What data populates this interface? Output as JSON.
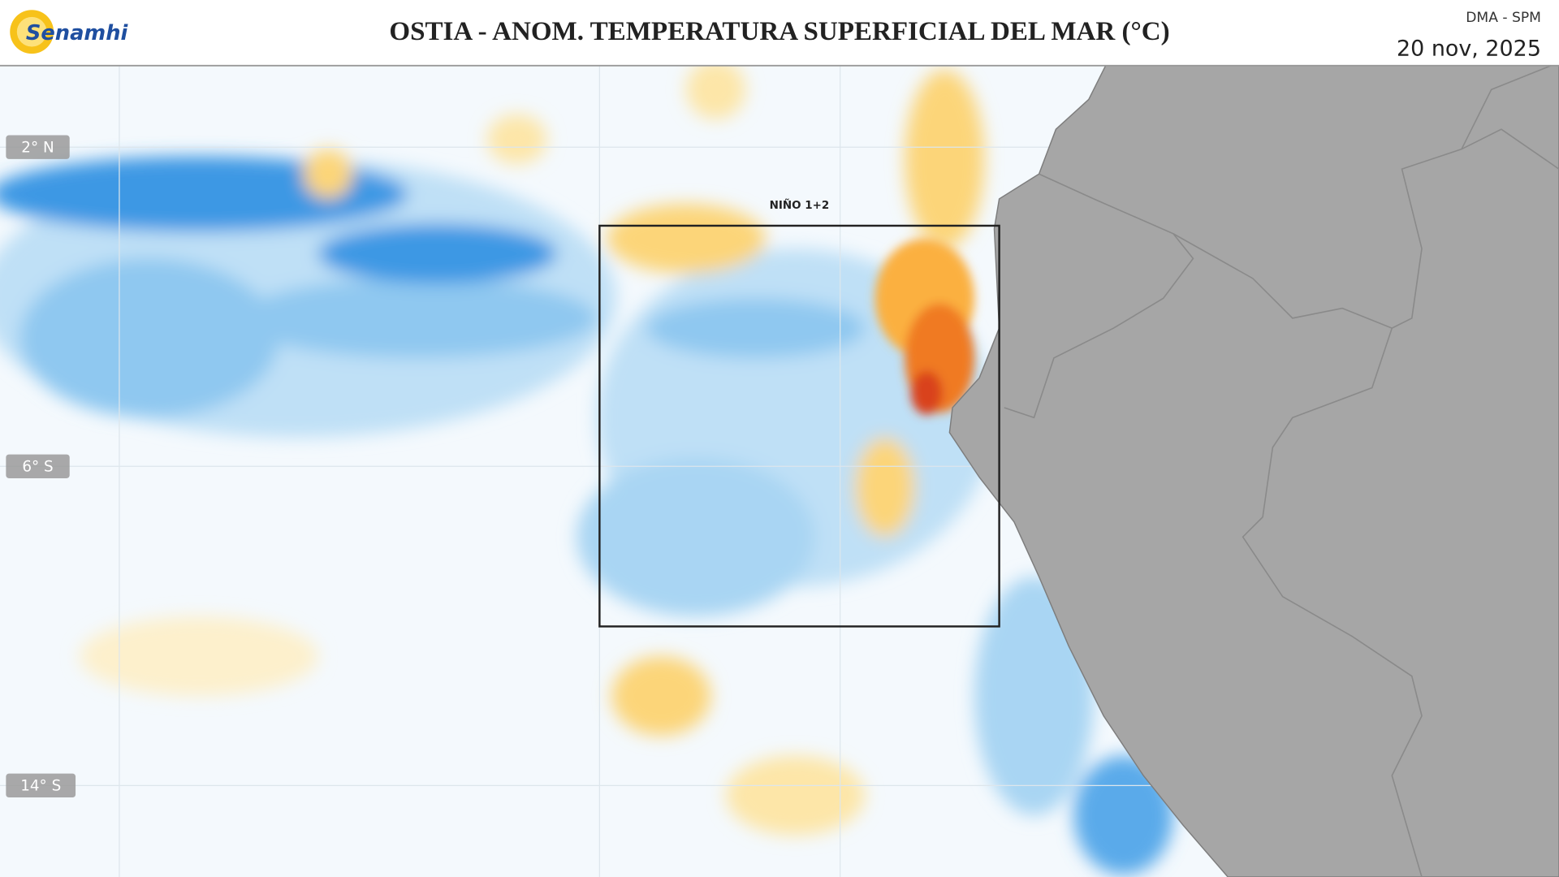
{
  "header": {
    "logo": "Senamhi",
    "title": "OSTIA - ANOM. TEMPERATURA SUPERFICIAL DEL MAR (°C)",
    "org": "DMA - SPM",
    "date": "20 nov, 2025"
  },
  "map": {
    "region_label": "NIÑO 1+2",
    "lat_labels": [
      "2° N",
      "6° S",
      "14° S"
    ]
  }
}
